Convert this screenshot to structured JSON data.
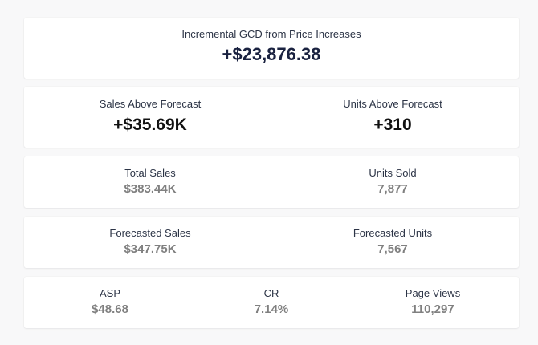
{
  "gcd": {
    "label": "Incremental GCD from Price Increases",
    "value": "+$23,876.38"
  },
  "above_forecast": {
    "sales_label": "Sales Above Forecast",
    "sales_value": "+$35.69K",
    "units_label": "Units Above Forecast",
    "units_value": "+310"
  },
  "actuals": {
    "sales_label": "Total Sales",
    "sales_value": "$383.44K",
    "units_label": "Units Sold",
    "units_value": "7,877"
  },
  "forecast": {
    "sales_label": "Forecasted Sales",
    "sales_value": "$347.75K",
    "units_label": "Forecasted Units",
    "units_value": "7,567"
  },
  "kpis": {
    "asp_label": "ASP",
    "asp_value": "$48.68",
    "cr_label": "CR",
    "cr_value": "7.14%",
    "page_views_label": "Page Views",
    "page_views_value": "110,297"
  }
}
